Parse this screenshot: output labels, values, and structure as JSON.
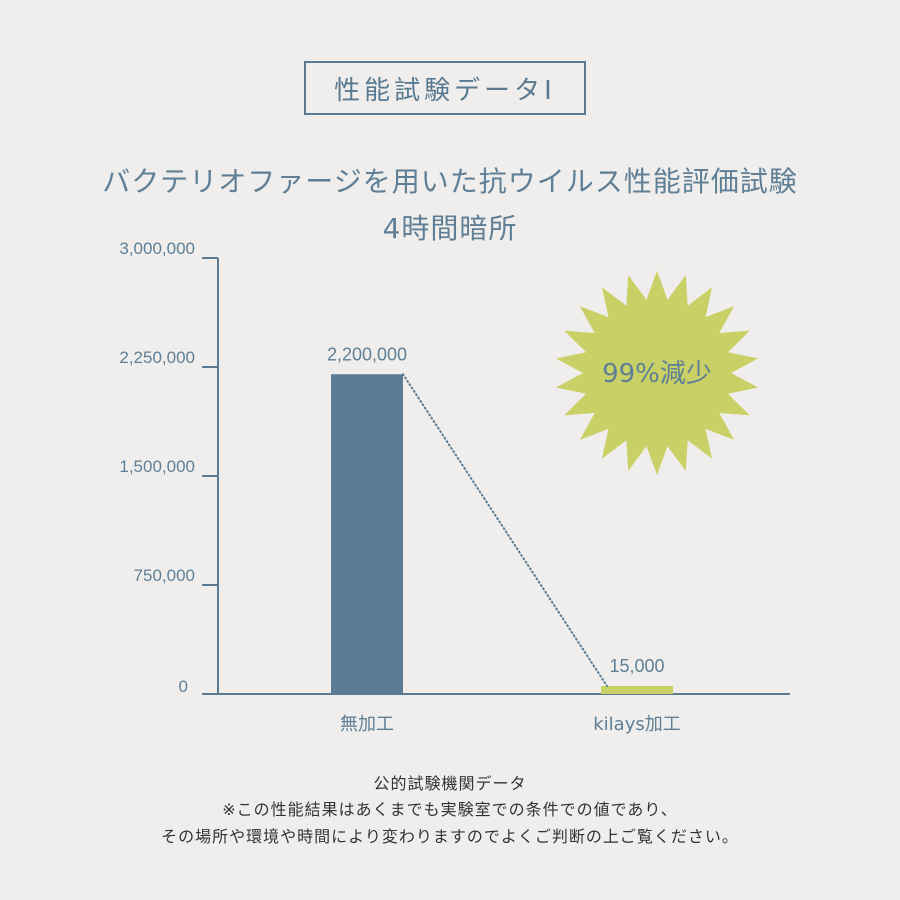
{
  "header": {
    "badge": "性能試験データⅠ",
    "title_line1": "バクテリオファージを用いた抗ウイルス性能評価試験",
    "title_line2": "4時間暗所"
  },
  "chart_data": {
    "type": "bar",
    "categories": [
      "無加工",
      "kilays加工"
    ],
    "values": [
      2200000,
      15000
    ],
    "value_labels": [
      "2,200,000",
      "15,000"
    ],
    "ylim": [
      0,
      3000000
    ],
    "yticks": [
      0,
      750000,
      1500000,
      2250000,
      3000000
    ],
    "ytick_labels": [
      "0",
      "750,000",
      "1,500,000",
      "2,250,000",
      "3,000,000"
    ],
    "bar_colors": [
      "#5a7b93",
      "#c9d066"
    ],
    "annotation": "99%減少",
    "annotation_color": "#c9d066",
    "connector": "dotted line from top of first bar to top of second bar",
    "grid": false,
    "title": "",
    "xlabel": "",
    "ylabel": ""
  },
  "footer": {
    "line1": "公的試験機関データ",
    "line2": "※この性能結果はあくまでも実験室での条件での値であり、",
    "line3": "その場所や環境や時間により変わりますのでよくご判断の上ご覧ください。"
  }
}
